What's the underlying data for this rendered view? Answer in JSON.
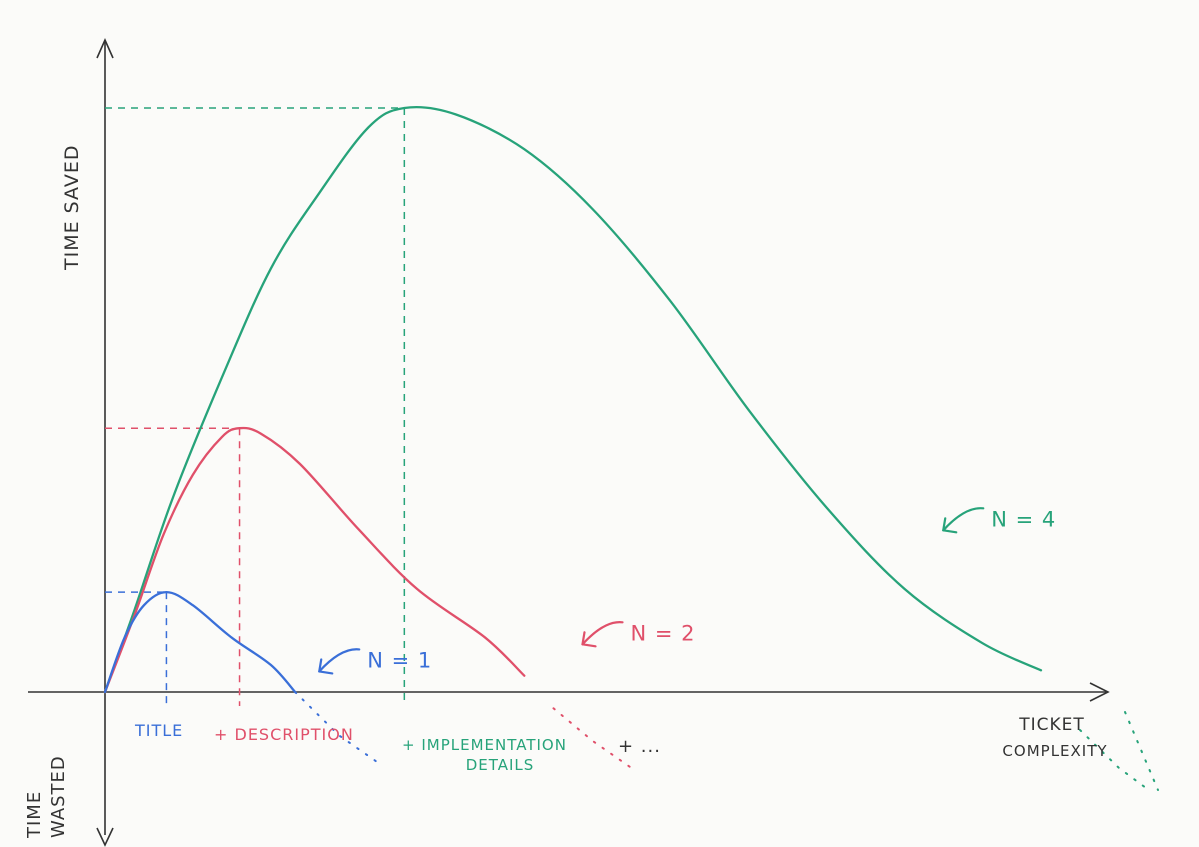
{
  "chart_data": {
    "type": "line",
    "title": "",
    "xlabel": "TICKET COMPLEXITY",
    "ylabel": "TIME SAVED",
    "ylabel_negative": [
      "TIME",
      "WASTED"
    ],
    "xlim": [
      0,
      10
    ],
    "ylim": [
      -1.4,
      6.2
    ],
    "grid": false,
    "legend": "labels next to curves",
    "x_labels": [
      {
        "text": "TITLE",
        "x": 0.6,
        "color": "#3a6fd8"
      },
      {
        "text": "+ DESCRIPTION",
        "x": 2.2,
        "color": "#e0506a"
      },
      {
        "text": "+ IMPLEMENTATION",
        "x": 4.9,
        "color": "#27a37a"
      },
      {
        "text": "DETAILS",
        "x": 4.9,
        "color": "#27a37a"
      },
      {
        "text": "+ ...",
        "x": 6.0,
        "color": "#333333"
      }
    ],
    "series": [
      {
        "name": "N=1",
        "color": "#3a6fd8",
        "peak": {
          "x": 0.63,
          "y": 0.92
        },
        "points": [
          [
            0,
            0
          ],
          [
            0.2,
            0.5
          ],
          [
            0.4,
            0.8
          ],
          [
            0.63,
            0.92
          ],
          [
            0.9,
            0.8
          ],
          [
            1.3,
            0.5
          ],
          [
            1.7,
            0.25
          ],
          [
            1.95,
            0
          ]
        ],
        "tail": [
          [
            1.95,
            0
          ],
          [
            2.4,
            -0.4
          ],
          [
            2.8,
            -0.65
          ]
        ]
      },
      {
        "name": "N=2",
        "color": "#e0506a",
        "peak": {
          "x": 1.38,
          "y": 2.43
        },
        "points": [
          [
            0,
            0
          ],
          [
            0.3,
            0.7
          ],
          [
            0.6,
            1.45
          ],
          [
            0.9,
            2.0
          ],
          [
            1.2,
            2.35
          ],
          [
            1.38,
            2.43
          ],
          [
            1.6,
            2.38
          ],
          [
            2.0,
            2.1
          ],
          [
            2.6,
            1.5
          ],
          [
            3.2,
            0.95
          ],
          [
            3.9,
            0.5
          ],
          [
            4.3,
            0.15
          ]
        ],
        "tail": [
          [
            4.6,
            -0.15
          ],
          [
            5.0,
            -0.45
          ],
          [
            5.4,
            -0.7
          ]
        ]
      },
      {
        "name": "N=4",
        "color": "#27a37a",
        "peak": {
          "x": 3.07,
          "y": 5.38
        },
        "points": [
          [
            0,
            0
          ],
          [
            0.3,
            0.75
          ],
          [
            0.7,
            1.8
          ],
          [
            1.2,
            2.9
          ],
          [
            1.7,
            3.9
          ],
          [
            2.2,
            4.6
          ],
          [
            2.7,
            5.2
          ],
          [
            3.07,
            5.38
          ],
          [
            3.6,
            5.32
          ],
          [
            4.3,
            5.0
          ],
          [
            5.0,
            4.45
          ],
          [
            5.8,
            3.6
          ],
          [
            6.6,
            2.6
          ],
          [
            7.4,
            1.7
          ],
          [
            8.2,
            0.95
          ],
          [
            9.0,
            0.45
          ],
          [
            9.6,
            0.2
          ]
        ],
        "tail": [
          [
            10.0,
            -0.35
          ],
          [
            10.4,
            -0.7
          ],
          [
            10.7,
            -0.9
          ]
        ]
      }
    ],
    "series_labels": [
      {
        "text": "N=1",
        "color": "#3a6fd8",
        "x": 2.3,
        "y": 0.3
      },
      {
        "text": "N=2",
        "color": "#e0506a",
        "x": 5.0,
        "y": 0.55
      },
      {
        "text": "N=4",
        "color": "#27a37a",
        "x": 8.7,
        "y": 1.6
      }
    ]
  }
}
